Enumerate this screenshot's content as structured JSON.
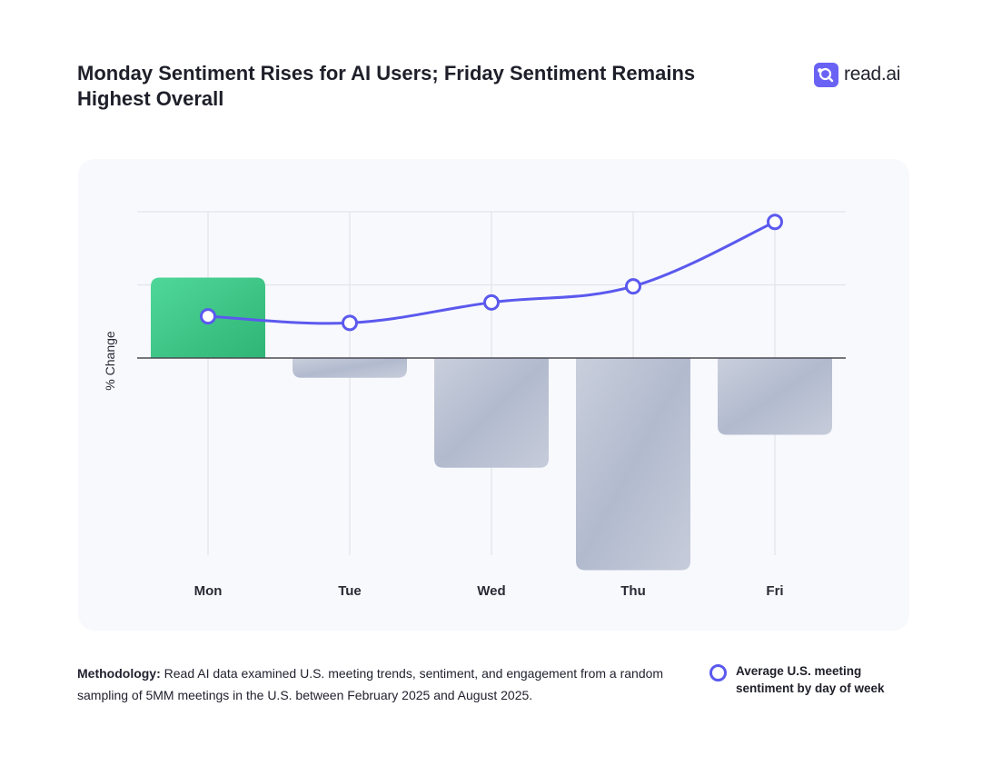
{
  "title": "Monday Sentiment Rises for AI Users; Friday Sentiment Remains Highest Overall",
  "brand": {
    "name": "read.ai",
    "logo_icon": "read-ai-logo-icon",
    "color": "#6a62f4"
  },
  "methodology": {
    "label": "Methodology:",
    "text": "Read AI data examined U.S. meeting trends, sentiment, and engagement from a random sampling of 5MM meetings in the U.S. between February 2025 and August 2025."
  },
  "legend": {
    "line_label": "Average U.S. meeting sentiment by day of week"
  },
  "chart_data": {
    "type": "bar",
    "title": "",
    "xlabel": "",
    "ylabel": "% Change",
    "categories": [
      "Mon",
      "Tue",
      "Wed",
      "Thu",
      "Fri"
    ],
    "ylim": [
      -3,
      2
    ],
    "grid": true,
    "series": [
      {
        "name": "% Change",
        "type": "bar",
        "values": [
          1.1,
          -0.27,
          -1.5,
          -2.9,
          -1.05
        ]
      },
      {
        "name": "Average U.S. meeting sentiment by day of week",
        "type": "line",
        "values": [
          0.57,
          0.48,
          0.76,
          0.98,
          1.86
        ]
      }
    ],
    "colors": {
      "positive": "#3ec486",
      "negative": "#b7bfd2",
      "line": "#5b59ee",
      "grid": "#e2e4ec",
      "axis": "#4a4a55"
    }
  }
}
